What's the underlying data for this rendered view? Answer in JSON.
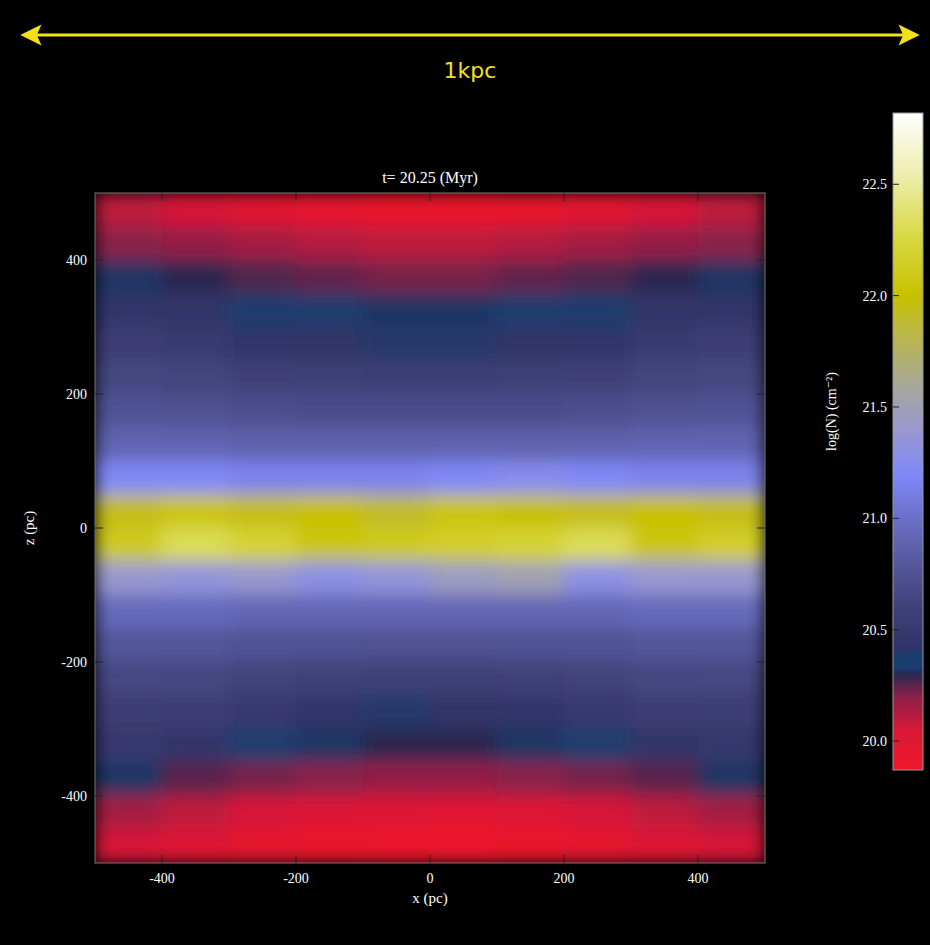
{
  "chart_data": {
    "type": "heatmap",
    "title": "t= 20.25 (Myr)",
    "x_label": "x (pc)",
    "y_label": "z (pc)",
    "annotation": "1kpc",
    "xlim": [
      -500,
      500
    ],
    "ylim": [
      -500,
      500
    ],
    "xticks": [
      -400,
      -200,
      0,
      200,
      400
    ],
    "yticks": [
      -400,
      -200,
      0,
      200,
      400
    ],
    "x": [
      -450,
      -350,
      -250,
      -150,
      -50,
      50,
      150,
      250,
      350,
      450
    ],
    "y": [
      475,
      425,
      375,
      325,
      275,
      225,
      175,
      125,
      75,
      25,
      -25,
      -75,
      -125,
      -175,
      -225,
      -275,
      -325,
      -375,
      -425,
      -475
    ],
    "cells": [
      [
        20.1,
        20.05,
        19.98,
        19.93,
        19.9,
        19.9,
        19.92,
        19.97,
        20.05,
        20.1
      ],
      [
        20.2,
        20.18,
        20.15,
        20.12,
        20.1,
        20.1,
        20.12,
        20.15,
        20.18,
        20.2
      ],
      [
        20.32,
        20.3,
        20.26,
        20.24,
        20.22,
        20.22,
        20.24,
        20.26,
        20.3,
        20.32
      ],
      [
        20.45,
        20.42,
        20.36,
        20.33,
        20.32,
        20.32,
        20.33,
        20.36,
        20.42,
        20.45
      ],
      [
        20.55,
        20.52,
        20.45,
        20.42,
        20.4,
        20.4,
        20.42,
        20.45,
        20.52,
        20.55
      ],
      [
        20.65,
        20.63,
        20.6,
        20.58,
        20.56,
        20.56,
        20.58,
        20.6,
        20.63,
        20.65
      ],
      [
        20.75,
        20.74,
        20.72,
        20.7,
        20.7,
        20.7,
        20.7,
        20.72,
        20.74,
        20.75
      ],
      [
        20.9,
        20.9,
        20.88,
        20.88,
        20.88,
        20.88,
        20.88,
        20.88,
        20.9,
        20.9
      ],
      [
        21.2,
        21.2,
        21.15,
        21.15,
        21.15,
        21.2,
        21.25,
        21.2,
        21.15,
        21.15
      ],
      [
        21.95,
        22.05,
        21.95,
        22.0,
        21.9,
        22.05,
        22.0,
        21.95,
        22.0,
        21.95
      ],
      [
        22.1,
        22.3,
        22.2,
        22.05,
        22.1,
        22.15,
        22.2,
        22.3,
        22.05,
        22.15
      ],
      [
        21.4,
        21.35,
        21.4,
        21.3,
        21.35,
        21.45,
        21.5,
        21.3,
        21.4,
        21.4
      ],
      [
        20.95,
        20.95,
        20.92,
        20.92,
        20.92,
        20.92,
        20.92,
        20.92,
        20.95,
        20.95
      ],
      [
        20.78,
        20.78,
        20.75,
        20.75,
        20.74,
        20.74,
        20.75,
        20.75,
        20.78,
        20.78
      ],
      [
        20.66,
        20.65,
        20.62,
        20.6,
        20.58,
        20.58,
        20.6,
        20.62,
        20.65,
        20.66
      ],
      [
        20.56,
        20.55,
        20.5,
        20.45,
        20.4,
        20.42,
        20.45,
        20.5,
        20.55,
        20.56
      ],
      [
        20.5,
        20.45,
        20.35,
        20.32,
        20.3,
        20.3,
        20.32,
        20.35,
        20.42,
        20.48
      ],
      [
        20.32,
        20.25,
        20.22,
        20.2,
        20.18,
        20.18,
        20.2,
        20.22,
        20.25,
        20.32
      ],
      [
        20.15,
        20.1,
        20.05,
        20.02,
        20.0,
        19.98,
        20.0,
        20.05,
        20.1,
        20.15
      ],
      [
        20.05,
        20.0,
        19.95,
        19.92,
        19.9,
        19.89,
        19.92,
        19.95,
        20.0,
        20.05
      ]
    ],
    "colorbar": {
      "label": "log(N) (cm⁻²)",
      "range": [
        19.87,
        22.82
      ],
      "ticks": [
        {
          "value": 20,
          "label": "20.0"
        },
        {
          "value": 20.5,
          "label": "20.5"
        },
        {
          "value": 21,
          "label": "21.0"
        },
        {
          "value": 21.5,
          "label": "21.5"
        },
        {
          "value": 22,
          "label": "22.0"
        },
        {
          "value": 22.5,
          "label": "22.5"
        }
      ]
    }
  }
}
